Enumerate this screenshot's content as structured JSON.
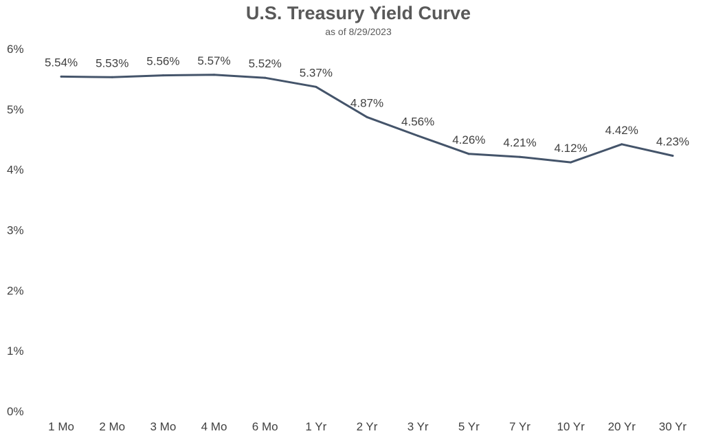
{
  "chart_data": {
    "type": "line",
    "title": "U.S. Treasury Yield Curve",
    "subtitle": "as of 8/29/2023",
    "categories": [
      "1 Mo",
      "2 Mo",
      "3 Mo",
      "4 Mo",
      "6 Mo",
      "1 Yr",
      "2 Yr",
      "3 Yr",
      "5 Yr",
      "7 Yr",
      "10 Yr",
      "20 Yr",
      "30 Yr"
    ],
    "values": [
      5.54,
      5.53,
      5.56,
      5.57,
      5.52,
      5.37,
      4.87,
      4.56,
      4.26,
      4.21,
      4.12,
      4.42,
      4.23
    ],
    "data_labels": [
      "5.54%",
      "5.53%",
      "5.56%",
      "5.57%",
      "5.52%",
      "5.37%",
      "4.87%",
      "4.56%",
      "4.26%",
      "4.21%",
      "4.12%",
      "4.42%",
      "4.23%"
    ],
    "y_ticks": [
      0,
      1,
      2,
      3,
      4,
      5,
      6
    ],
    "y_tick_labels": [
      "0%",
      "1%",
      "2%",
      "3%",
      "4%",
      "5%",
      "6%"
    ],
    "ylim": [
      0,
      6
    ],
    "xlabel": "",
    "ylabel": "",
    "grid": false,
    "legend": "none",
    "line_color": "#44546A",
    "text_color": "#404040",
    "title_color": "#595959"
  }
}
